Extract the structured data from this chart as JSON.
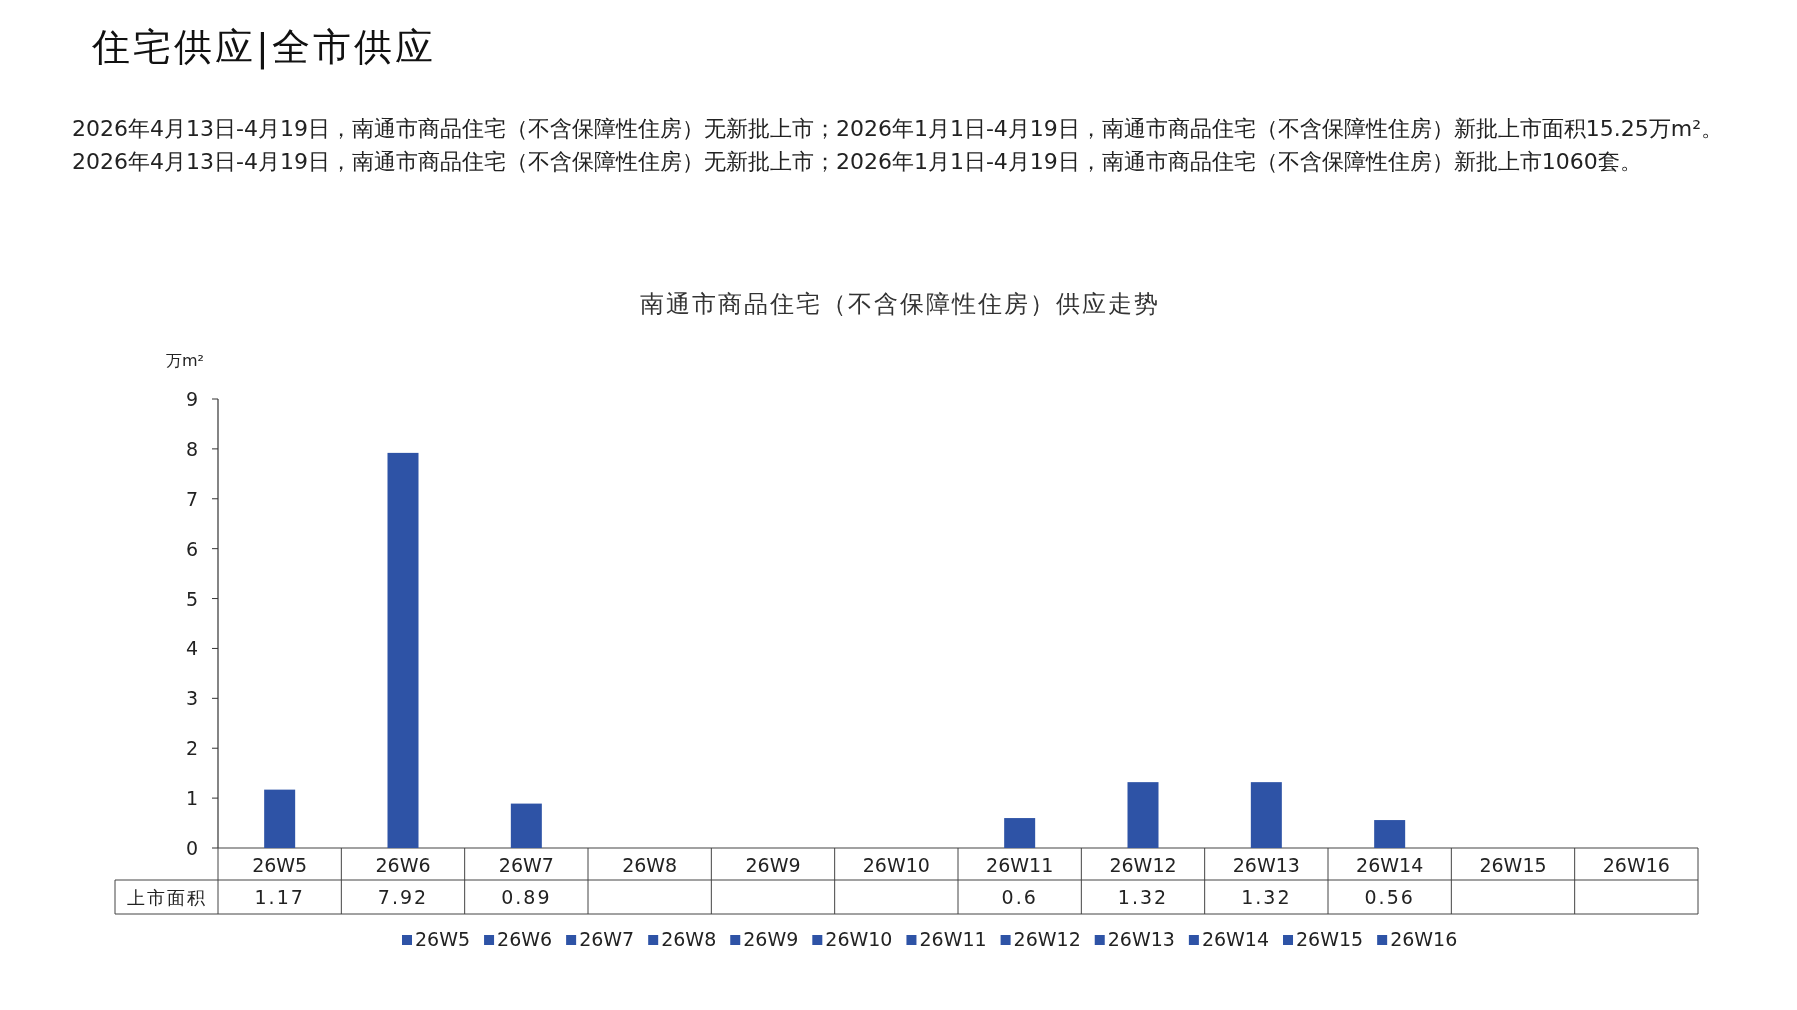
{
  "chart_data": {
    "type": "bar",
    "title": "南通市商品住宅（不含保障性住房）供应走势",
    "ylabel": "万m²",
    "annotations": [
      "住宅供应|全市供应",
      "2026年4月13日-4月19日，南通市商品住宅（不含保障性住房）无新批上市；2026年1月1日-4月19日，南通市商品住宅（不含保障性住房）新批上市面积15.25万m²。2026年4月13日-4月19日，南通市商品住宅（不含保障性住房）无新批上市；2026年1月1日-4月19日，南通市商品住宅（不含保障性住房）新批上市1060套。"
    ],
    "categories": [
      "26W5",
      "26W6",
      "26W7",
      "26W8",
      "26W9",
      "26W10",
      "26W11",
      "26W12",
      "26W13",
      "26W14",
      "26W15",
      "26W16"
    ],
    "series": [
      {
        "name": "上市面积",
        "color": "#2e53a6",
        "values": [
          1.17,
          7.92,
          0.89,
          null,
          null,
          null,
          0.6,
          1.32,
          1.32,
          0.56,
          null,
          null
        ]
      }
    ],
    "ylim": [
      0,
      9
    ],
    "yticks": [
      0,
      1,
      2,
      3,
      4,
      5,
      6,
      7,
      8,
      9
    ],
    "data_labels": true,
    "legend": "bottom",
    "grid": false
  }
}
